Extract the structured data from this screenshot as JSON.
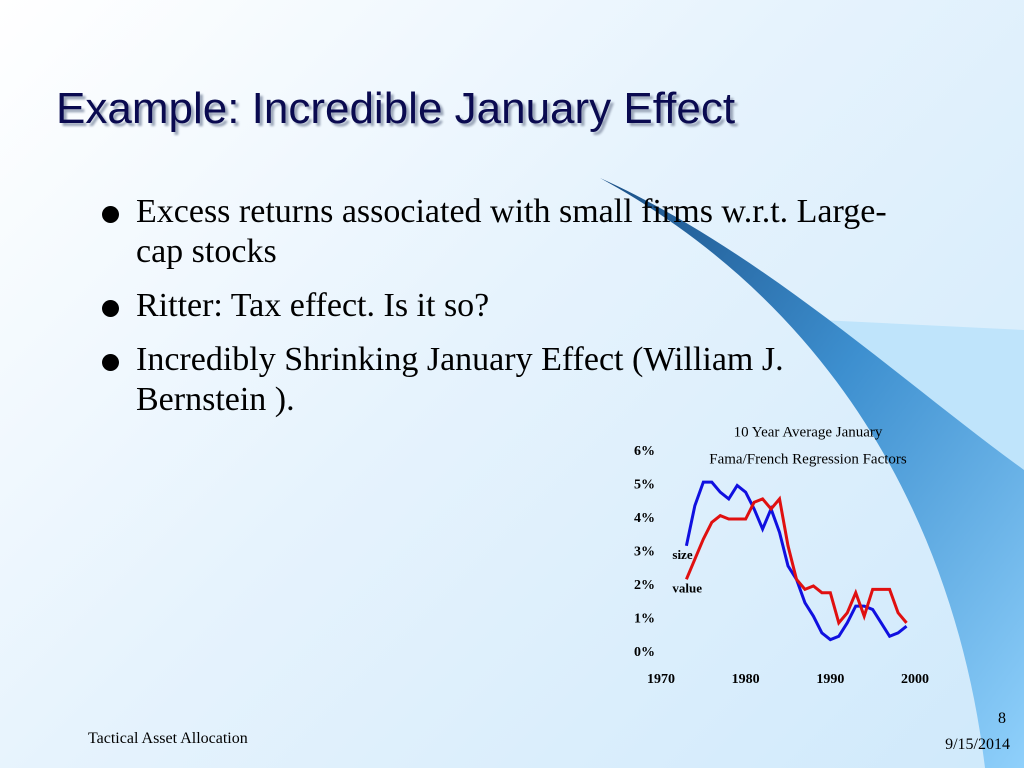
{
  "slide": {
    "title": "Example: Incredible January Effect",
    "bullets": [
      "Excess returns associated with small firms w.r.t. Large-cap stocks",
      "Ritter: Tax effect. Is it so?",
      "Incredibly Shrinking January Effect (William J. Bernstein )."
    ],
    "footer": "Tactical Asset Allocation",
    "page_number": "8",
    "date": "9/15/2014"
  },
  "chart_data": {
    "type": "line",
    "title": "10 Year Average January",
    "subtitle": "Fama/French Regression Factors",
    "x": [
      1973,
      1974,
      1975,
      1976,
      1977,
      1978,
      1979,
      1980,
      1981,
      1982,
      1983,
      1984,
      1985,
      1986,
      1987,
      1988,
      1989,
      1990,
      1991,
      1992,
      1993,
      1994,
      1995,
      1996,
      1997,
      1998,
      1999
    ],
    "series": [
      {
        "name": "size",
        "color": "#1010e0",
        "values": [
          3.2,
          4.4,
          5.1,
          5.1,
          4.8,
          4.6,
          5.0,
          4.8,
          4.3,
          3.7,
          4.3,
          3.6,
          2.6,
          2.2,
          1.5,
          1.1,
          0.6,
          0.4,
          0.5,
          0.9,
          1.4,
          1.4,
          1.3,
          0.9,
          0.5,
          0.6,
          0.8
        ]
      },
      {
        "name": "value",
        "color": "#e01010",
        "values": [
          2.2,
          2.8,
          3.4,
          3.9,
          4.1,
          4.0,
          4.0,
          4.0,
          4.5,
          4.6,
          4.3,
          4.6,
          3.2,
          2.2,
          1.9,
          2.0,
          1.8,
          1.8,
          0.9,
          1.2,
          1.8,
          1.1,
          1.9,
          1.9,
          1.9,
          1.2,
          0.9
        ]
      }
    ],
    "xlim": [
      1970,
      2000
    ],
    "xticks": [
      1970,
      1980,
      1990,
      2000
    ],
    "ylim": [
      0,
      6
    ],
    "yticks": [
      {
        "value": 0,
        "label": "0%"
      },
      {
        "value": 1,
        "label": "1%"
      },
      {
        "value": 2,
        "label": "2%"
      },
      {
        "value": 3,
        "label": "3%"
      },
      {
        "value": 4,
        "label": "4%"
      },
      {
        "value": 5,
        "label": "5%"
      },
      {
        "value": 6,
        "label": "6%"
      }
    ],
    "grid": false
  }
}
